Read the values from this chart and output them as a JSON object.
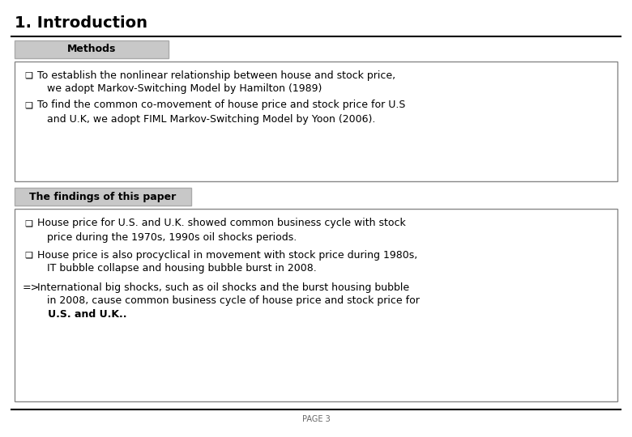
{
  "title": "1. Introduction",
  "page_label": "PAGE 3",
  "section1_label": "Methods",
  "section2_label": "The findings of this paper",
  "methods_bullets": [
    {
      "line1": "To establish the nonlinear relationship between house and stock price,",
      "line2": "   we adopt Markov-Switching Model by Hamilton (1989)"
    },
    {
      "line1": "To find the common co-movement of house price and stock price for U.S",
      "line2": "   and U.K, we adopt FIML Markov-Switching Model by Yoon (2006)."
    }
  ],
  "findings_bullets": [
    {
      "line1": "House price for U.S. and U.K. showed common business cycle with stock",
      "line2": "   price during the 1970s, 1990s oil shocks periods."
    },
    {
      "line1": "House price is also procyclical in movement with stock price during 1980s,",
      "line2": "   IT bubble collapse and housing bubble burst in 2008."
    },
    {
      "line1": "International big shocks, such as oil shocks and the burst housing bubble",
      "line2": "   in 2008, cause common business cycle of house price and stock price for",
      "line3": "   U.S. and U.K.."
    }
  ],
  "bg_color": "#ffffff",
  "title_color": "#000000",
  "section_bg": "#c8c8c8",
  "box_border": "#888888",
  "text_color": "#000000",
  "page_color": "#666666",
  "title_fontsize": 14,
  "section_label_fontsize": 9,
  "body_fontsize": 9,
  "page_fontsize": 7
}
